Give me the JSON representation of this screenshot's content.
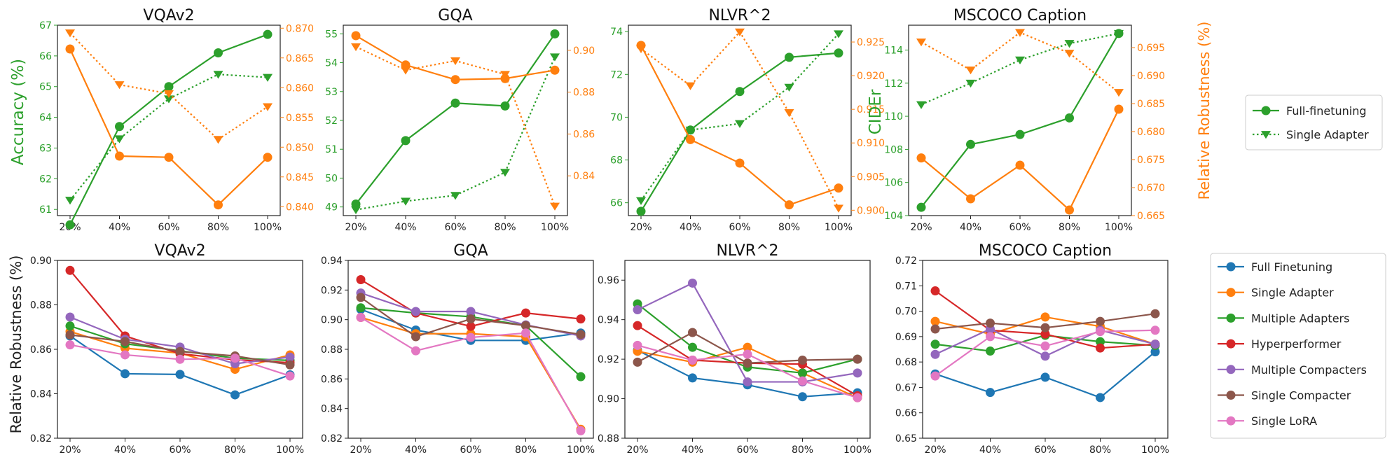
{
  "colors": {
    "green": "#2ca02c",
    "orange": "#ff7f0e",
    "full": "#1f77b4",
    "single_adapter": "#ff7f0e",
    "multi_adapters": "#2ca02c",
    "hyper": "#d62728",
    "multi_compacters": "#9467bd",
    "single_compacter": "#8c564b",
    "lora": "#e377c2"
  },
  "top_row": {
    "left_axis_label": "Accuracy (%)",
    "right_axis_label": "Relative Robustness (%)",
    "cider_label": "CIDEr",
    "legend": [
      "Full-finetuning",
      "Single Adapter"
    ]
  },
  "bottom_row": {
    "ylabel": "Relative Robustness (%)",
    "legend": [
      "Full Finetuning",
      "Single Adapter",
      "Multiple Adapters",
      "Hyperperformer",
      "Multiple Compacters",
      "Single Compacter",
      "Single LoRA"
    ]
  },
  "chart_data": [
    {
      "type": "line",
      "title": "VQAv2",
      "x": [
        "20%",
        "40%",
        "60%",
        "80%",
        "100%"
      ],
      "ylim": [
        60.8,
        67.0
      ],
      "ylim_right": [
        0.8385,
        0.8705
      ],
      "yticks": [
        61,
        62,
        63,
        64,
        65,
        66,
        67
      ],
      "yticks_right": [
        "0.840",
        "0.845",
        "0.850",
        "0.855",
        "0.860",
        "0.865",
        "0.870"
      ],
      "series": [
        {
          "name": "Full-finetuning",
          "axis": "left",
          "values": [
            60.5,
            63.7,
            65.0,
            66.1,
            66.7
          ]
        },
        {
          "name": "Single Adapter",
          "axis": "left",
          "values": [
            61.3,
            63.3,
            64.6,
            65.4,
            65.3
          ]
        },
        {
          "axis": "right",
          "style": "solid",
          "values": [
            0.8665,
            0.8485,
            0.8483,
            0.8403,
            0.8483
          ]
        },
        {
          "axis": "right",
          "style": "dotted",
          "values": [
            0.8692,
            0.8605,
            0.859,
            0.8513,
            0.8568
          ]
        }
      ]
    },
    {
      "type": "line",
      "title": "GQA",
      "x": [
        "20%",
        "40%",
        "60%",
        "80%",
        "100%"
      ],
      "ylim": [
        48.7,
        55.3
      ],
      "ylim_right": [
        0.821,
        0.912
      ],
      "yticks": [
        49,
        50,
        51,
        52,
        53,
        54,
        55
      ],
      "yticks_right": [
        "0.84",
        "0.86",
        "0.88",
        "0.90"
      ],
      "series": [
        {
          "name": "Full-finetuning",
          "axis": "left",
          "values": [
            49.1,
            51.3,
            52.6,
            52.5,
            55.0
          ]
        },
        {
          "name": "Single Adapter",
          "axis": "left",
          "values": [
            48.9,
            49.2,
            49.4,
            50.2,
            54.2
          ]
        },
        {
          "axis": "right",
          "style": "solid",
          "values": [
            0.907,
            0.893,
            0.886,
            0.8865,
            0.8905
          ]
        },
        {
          "axis": "right",
          "style": "dotted",
          "values": [
            0.9017,
            0.8905,
            0.895,
            0.8885,
            0.8255
          ]
        }
      ]
    },
    {
      "type": "line",
      "title": "NLVR^2",
      "x": [
        "20%",
        "40%",
        "60%",
        "80%",
        "100%"
      ],
      "ylim": [
        65.4,
        74.3
      ],
      "ylim_right": [
        0.8992,
        0.9275
      ],
      "yticks": [
        66,
        68,
        70,
        72,
        74
      ],
      "yticks_right": [
        "0.900",
        "0.905",
        "0.910",
        "0.915",
        "0.920",
        "0.925"
      ],
      "series": [
        {
          "name": "Full-finetuning",
          "axis": "left",
          "values": [
            65.6,
            69.4,
            71.2,
            72.8,
            73.0
          ]
        },
        {
          "name": "Single Adapter",
          "axis": "left",
          "values": [
            66.1,
            69.4,
            69.7,
            71.4,
            73.9
          ]
        },
        {
          "axis": "right",
          "style": "solid",
          "values": [
            0.9245,
            0.9105,
            0.907,
            0.9008,
            0.9033
          ]
        },
        {
          "axis": "right",
          "style": "dotted",
          "values": [
            0.924,
            0.9185,
            0.9265,
            0.9145,
            0.9003
          ]
        }
      ]
    },
    {
      "type": "line",
      "title": "MSCOCO Caption",
      "x": [
        "20%",
        "40%",
        "60%",
        "80%",
        "100%"
      ],
      "ylim": [
        104.0,
        115.5
      ],
      "ylim_right": [
        0.665,
        0.699
      ],
      "yticks": [
        104,
        106,
        108,
        110,
        112,
        114
      ],
      "yticks_right": [
        "0.665",
        "0.670",
        "0.675",
        "0.680",
        "0.685",
        "0.690",
        "0.695"
      ],
      "series": [
        {
          "name": "Full-finetuning",
          "axis": "left",
          "values": [
            104.5,
            108.3,
            108.9,
            109.9,
            115.0
          ]
        },
        {
          "name": "Single Adapter",
          "axis": "left",
          "values": [
            110.7,
            112.0,
            113.4,
            114.4,
            115.0
          ]
        },
        {
          "axis": "right",
          "style": "solid",
          "values": [
            0.6753,
            0.668,
            0.674,
            0.666,
            0.684
          ]
        },
        {
          "axis": "right",
          "style": "dotted",
          "values": [
            0.696,
            0.691,
            0.6977,
            0.694,
            0.687
          ]
        }
      ]
    },
    {
      "type": "line",
      "title": "VQAv2",
      "x": [
        "20%",
        "40%",
        "60%",
        "80%",
        "100%"
      ],
      "ylim": [
        0.82,
        0.9
      ],
      "yticks": [
        "0.82",
        "0.84",
        "0.86",
        "0.88",
        "0.90"
      ],
      "series": [
        {
          "name": "Full Finetuning",
          "values": [
            0.866,
            0.849,
            0.8487,
            0.8395,
            0.8485
          ]
        },
        {
          "name": "Single Adapter",
          "values": [
            0.868,
            0.8605,
            0.8583,
            0.851,
            0.8575
          ]
        },
        {
          "name": "Multiple Adapters",
          "values": [
            0.8705,
            0.8625,
            0.8593,
            0.856,
            0.855
          ]
        },
        {
          "name": "Hyperperformer",
          "values": [
            0.8955,
            0.866,
            0.858,
            0.8553,
            0.854
          ]
        },
        {
          "name": "Multiple Compacters",
          "values": [
            0.8745,
            0.8645,
            0.861,
            0.8535,
            0.8565
          ]
        },
        {
          "name": "Single Compacter",
          "values": [
            0.8665,
            0.8635,
            0.859,
            0.857,
            0.853
          ]
        },
        {
          "name": "Single LoRA",
          "values": [
            0.862,
            0.8575,
            0.8555,
            0.856,
            0.848
          ]
        }
      ]
    },
    {
      "type": "line",
      "title": "GQA",
      "x": [
        "20%",
        "40%",
        "60%",
        "80%",
        "100%"
      ],
      "ylim": [
        0.82,
        0.94
      ],
      "yticks": [
        "0.82",
        "0.84",
        "0.86",
        "0.88",
        "0.90",
        "0.92",
        "0.94"
      ],
      "series": [
        {
          "name": "Full Finetuning",
          "values": [
            0.907,
            0.893,
            0.886,
            0.886,
            0.891
          ]
        },
        {
          "name": "Single Adapter",
          "values": [
            0.9015,
            0.8905,
            0.8905,
            0.8885,
            0.826
          ]
        },
        {
          "name": "Multiple Adapters",
          "values": [
            0.908,
            0.9045,
            0.902,
            0.896,
            0.8615
          ]
        },
        {
          "name": "Hyperperformer",
          "values": [
            0.927,
            0.9045,
            0.8955,
            0.9045,
            0.9005
          ]
        },
        {
          "name": "Multiple Compacters",
          "values": [
            0.918,
            0.9055,
            0.9055,
            0.8965,
            0.889
          ]
        },
        {
          "name": "Single Compacter",
          "values": [
            0.915,
            0.8885,
            0.9005,
            0.896,
            0.89
          ]
        },
        {
          "name": "Single LoRA",
          "values": [
            0.9015,
            0.879,
            0.888,
            0.891,
            0.825
          ]
        }
      ]
    },
    {
      "type": "line",
      "title": "NLVR^2",
      "x": [
        "20%",
        "40%",
        "60%",
        "80%",
        "100%"
      ],
      "ylim": [
        0.88,
        0.97
      ],
      "yticks": [
        "0.88",
        "0.90",
        "0.92",
        "0.94",
        "0.96"
      ],
      "series": [
        {
          "name": "Full Finetuning",
          "values": [
            0.9245,
            0.9105,
            0.907,
            0.901,
            0.903
          ]
        },
        {
          "name": "Single Adapter",
          "values": [
            0.924,
            0.9185,
            0.926,
            0.913,
            0.9005
          ]
        },
        {
          "name": "Multiple Adapters",
          "values": [
            0.948,
            0.926,
            0.916,
            0.913,
            0.92
          ]
        },
        {
          "name": "Hyperperformer",
          "values": [
            0.937,
            0.9195,
            0.918,
            0.9175,
            0.9015
          ]
        },
        {
          "name": "Multiple Compacters",
          "values": [
            0.945,
            0.9585,
            0.9085,
            0.9085,
            0.913
          ]
        },
        {
          "name": "Single Compacter",
          "values": [
            0.9185,
            0.9335,
            0.918,
            0.9195,
            0.92
          ]
        },
        {
          "name": "Single LoRA",
          "values": [
            0.927,
            0.9195,
            0.9225,
            0.909,
            0.9005
          ]
        }
      ]
    },
    {
      "type": "line",
      "title": "MSCOCO Caption",
      "x": [
        "20%",
        "40%",
        "60%",
        "80%",
        "100%"
      ],
      "ylim": [
        0.65,
        0.72
      ],
      "yticks": [
        "0.65",
        "0.66",
        "0.67",
        "0.68",
        "0.69",
        "0.70",
        "0.71",
        "0.72"
      ],
      "series": [
        {
          "name": "Full Finetuning",
          "values": [
            0.6753,
            0.668,
            0.674,
            0.666,
            0.684
          ]
        },
        {
          "name": "Single Adapter",
          "values": [
            0.696,
            0.691,
            0.6977,
            0.694,
            0.687
          ]
        },
        {
          "name": "Multiple Adapters",
          "values": [
            0.687,
            0.6843,
            0.6905,
            0.688,
            0.6865
          ]
        },
        {
          "name": "Hyperperformer",
          "values": [
            0.708,
            0.6925,
            0.691,
            0.6855,
            0.687
          ]
        },
        {
          "name": "Multiple Compacters",
          "values": [
            0.683,
            0.693,
            0.6823,
            0.6925,
            0.687
          ]
        },
        {
          "name": "Single Compacter",
          "values": [
            0.693,
            0.6953,
            0.6935,
            0.696,
            0.699
          ]
        },
        {
          "name": "Single LoRA",
          "values": [
            0.6745,
            0.69,
            0.6863,
            0.692,
            0.6925
          ]
        }
      ]
    }
  ]
}
